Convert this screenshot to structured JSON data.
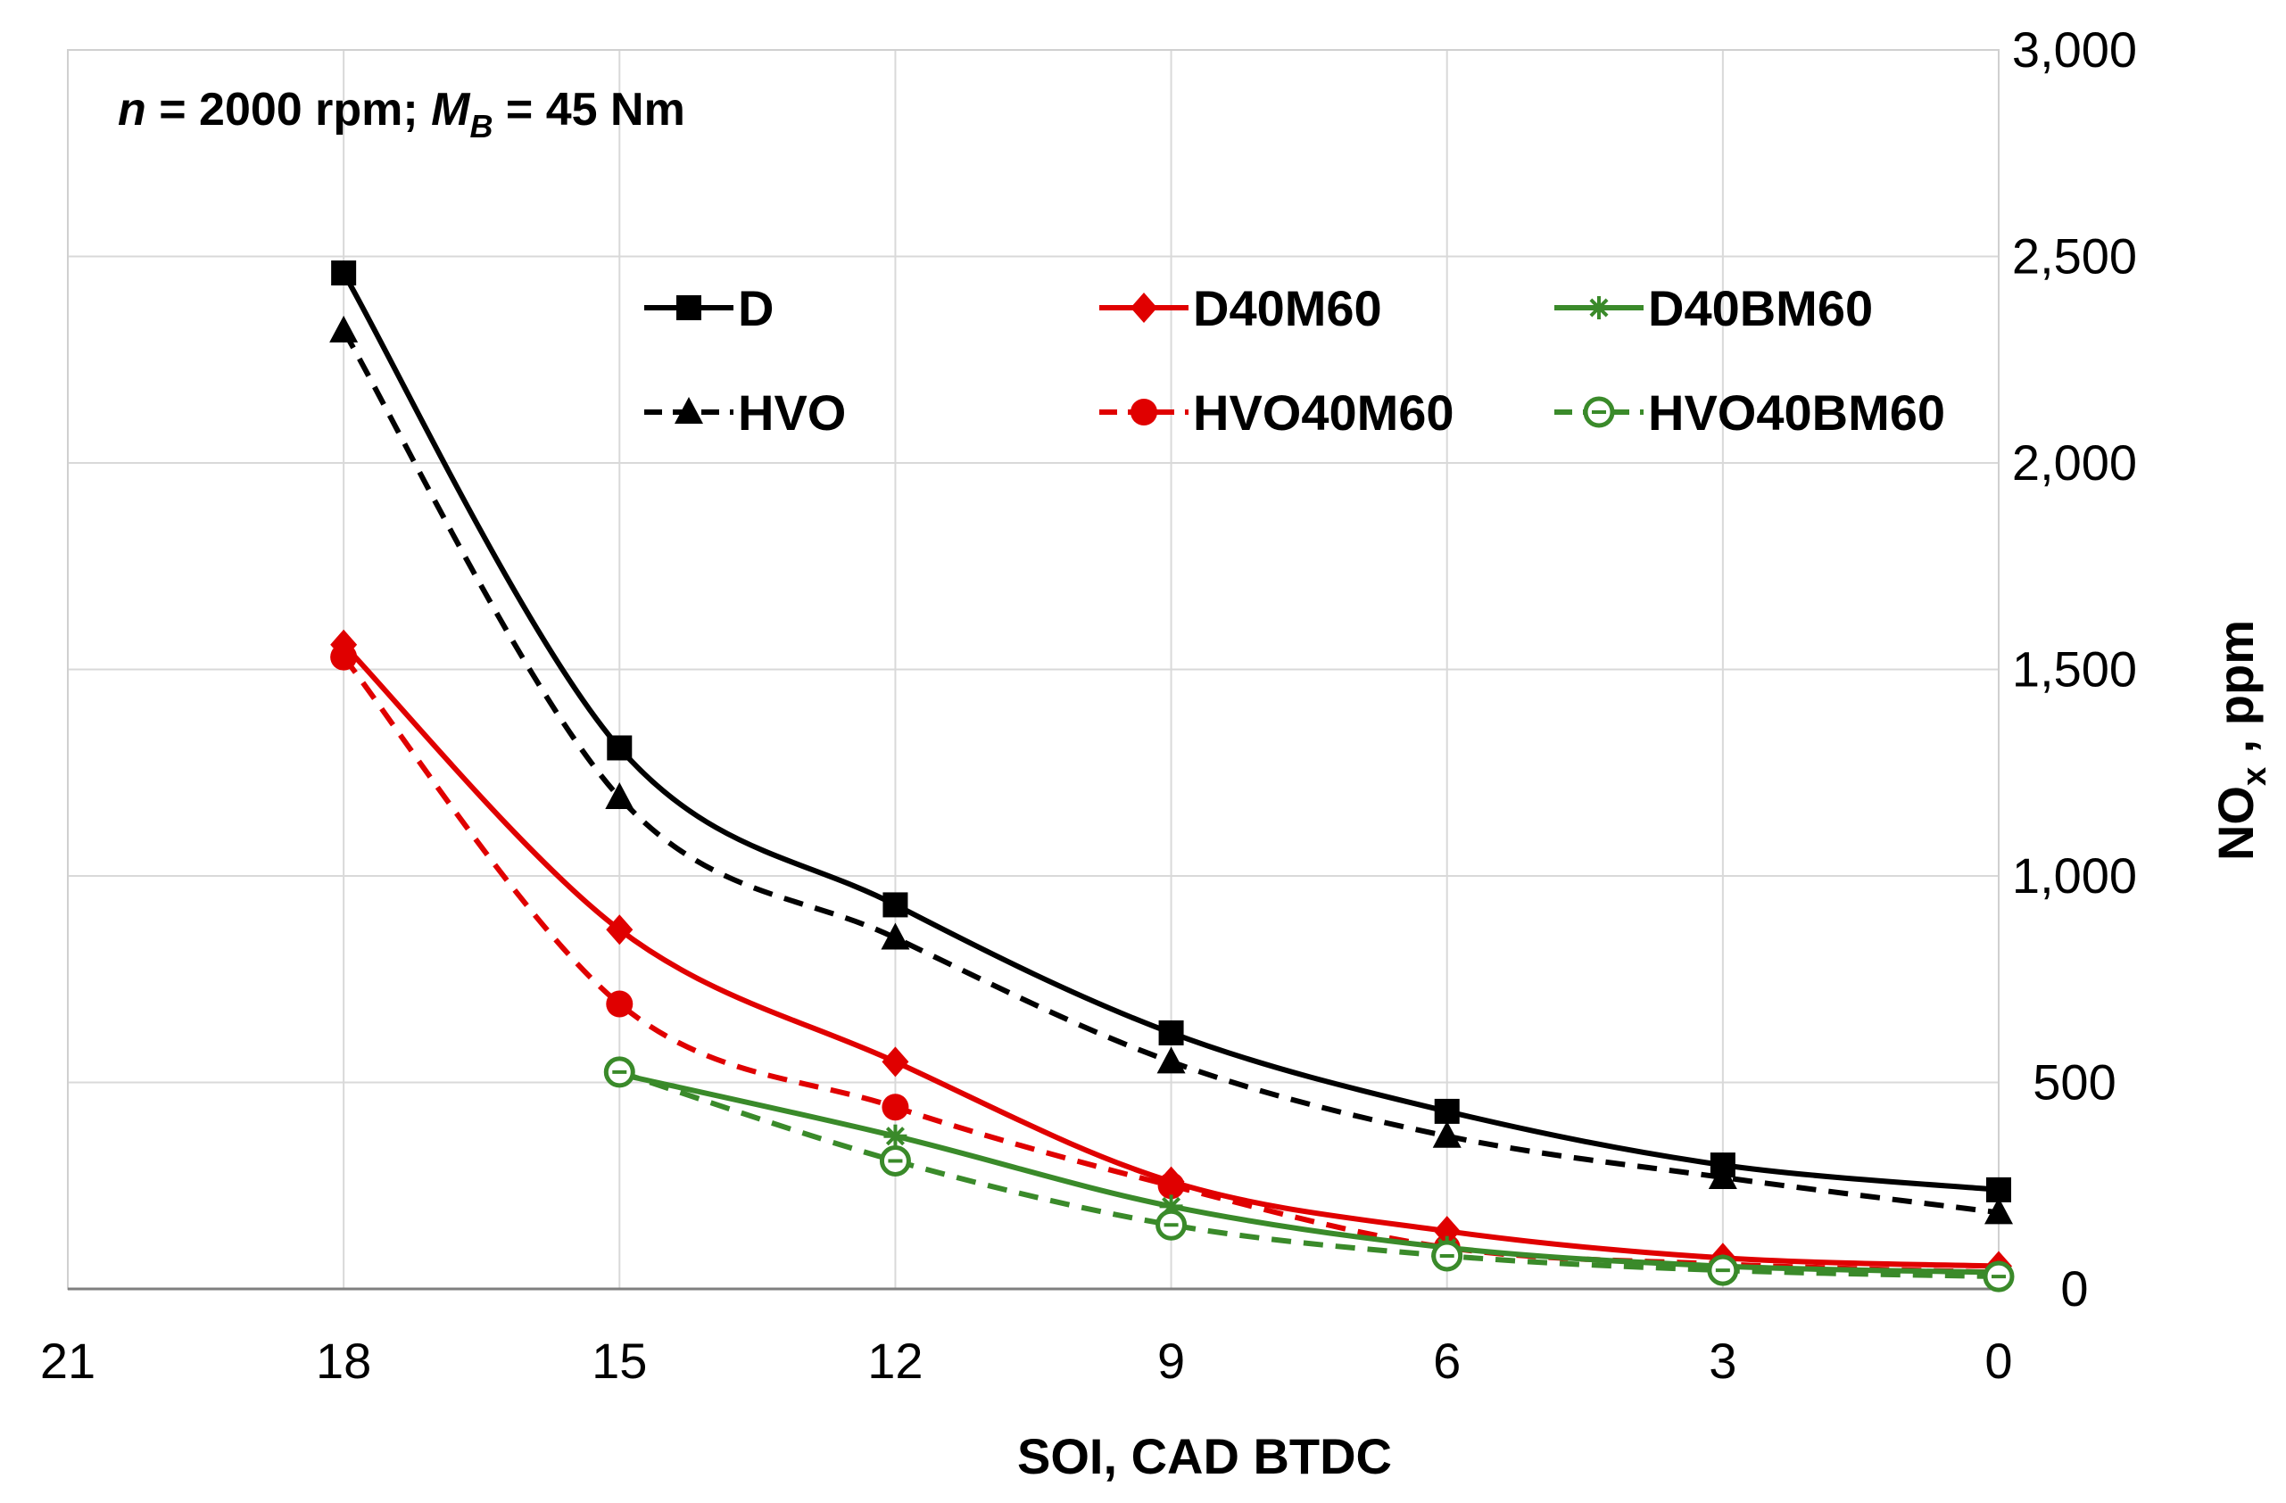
{
  "chart_data": {
    "type": "line",
    "title": "",
    "xlabel": "SOI,  CAD BTDC",
    "ylabel": "NOx , ppm",
    "ylabel_main": "NO",
    "ylabel_sub": "x",
    "ylabel_rest": " , ppm",
    "xlim": [
      21,
      0
    ],
    "ylim": [
      0,
      3000
    ],
    "x_ticks": [
      21,
      18,
      15,
      12,
      9,
      6,
      3,
      0
    ],
    "x_tick_labels": [
      "21",
      "18",
      "15",
      "12",
      "9",
      "6",
      "3",
      "0"
    ],
    "y_ticks": [
      0,
      500,
      1000,
      1500,
      2000,
      2500,
      3000
    ],
    "y_tick_labels": [
      "0",
      "500",
      "1,000",
      "1,500",
      "2,000",
      "2,500",
      "3,000"
    ],
    "grid": true,
    "legend_position": "top",
    "annotation": {
      "n_symbol": "n",
      "n_text": " = 2000 rpm; ",
      "m_symbol": "M",
      "m_sub": "B",
      "m_text": " = 45 Nm"
    },
    "series": [
      {
        "name": "D",
        "color": "#000000",
        "dash": "solid",
        "marker": "square",
        "x": [
          18,
          15,
          12,
          9,
          6,
          3,
          0
        ],
        "values": [
          2460,
          1310,
          930,
          620,
          430,
          300,
          240
        ]
      },
      {
        "name": "HVO",
        "color": "#000000",
        "dash": "dashed",
        "marker": "triangle",
        "x": [
          18,
          15,
          12,
          9,
          6,
          3,
          0
        ],
        "values": [
          2320,
          1190,
          850,
          550,
          370,
          270,
          185
        ]
      },
      {
        "name": "D40M60",
        "color": "#e00000",
        "dash": "solid",
        "marker": "diamond",
        "x": [
          18,
          15,
          12,
          9,
          6,
          3,
          0
        ],
        "values": [
          1560,
          870,
          550,
          260,
          140,
          75,
          55
        ]
      },
      {
        "name": "HVO40M60",
        "color": "#e00000",
        "dash": "dashed",
        "marker": "circle",
        "x": [
          18,
          15,
          12,
          9,
          6,
          3,
          0
        ],
        "values": [
          1530,
          690,
          440,
          250,
          100,
          60,
          40
        ]
      },
      {
        "name": "D40BM60",
        "color": "#3a8a2a",
        "dash": "solid",
        "marker": "asterisk",
        "x": [
          15,
          12,
          9,
          6,
          3,
          0
        ],
        "values": [
          520,
          370,
          200,
          100,
          55,
          40
        ]
      },
      {
        "name": "HVO40BM60",
        "color": "#3a8a2a",
        "dash": "dashed",
        "marker": "circle-open",
        "x": [
          15,
          12,
          9,
          6,
          3,
          0
        ],
        "values": [
          525,
          310,
          155,
          80,
          45,
          30
        ]
      }
    ]
  }
}
